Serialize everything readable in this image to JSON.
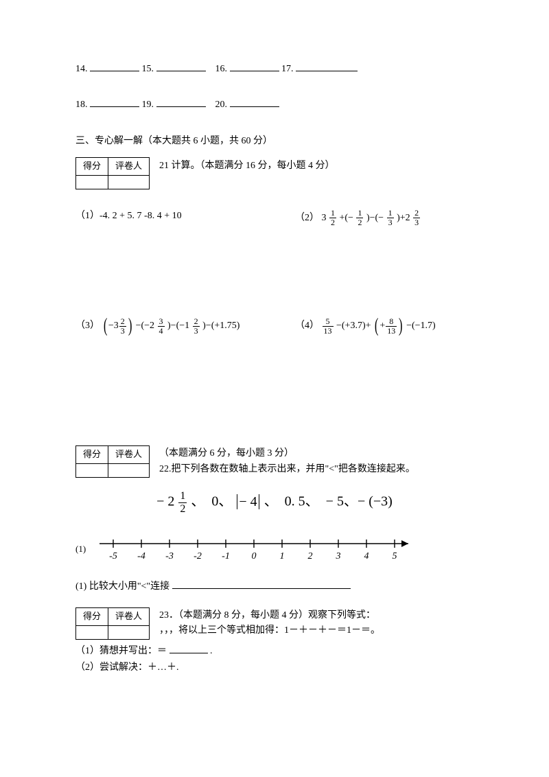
{
  "fills": {
    "r1": [
      "14.",
      "15.",
      "16.",
      "17."
    ],
    "r2": [
      "18.",
      "19.",
      "20."
    ]
  },
  "section3": {
    "title": "三、专心解一解（本大题共 6 小题，共 60 分）",
    "scorebox": {
      "col1": "得分",
      "col2": "评卷人"
    },
    "q21": {
      "header": "21 计算。（本题满分 16 分，每小题 4 分）",
      "p1_label": "（1）-4. 2 + 5. 7 -8. 4 + 10",
      "p2_label": "（2） 3",
      "p2_tail": "+(−",
      "p2_tail2": ")−(−",
      "p2_tail3": ")+2",
      "p3_label": "（3）",
      "p3_mid1": "−(−2",
      "p3_mid2": ")−(−1",
      "p3_mid3": ")−(+1.75)",
      "p4_label": "（4）",
      "p4_mid1": "−(+3.7)+",
      "p4_mid2": "−(−1.7)"
    },
    "q22": {
      "header_points": "（本题满分 6 分，每小题 3 分）",
      "header_text": "22.把下列各数在数轴上表示出来，并用\"<\"把各数连接起来。",
      "nums_a": "− 2",
      "nums_rest": "、　0、",
      "nums_abs": "− 4",
      "nums_tail": "、　0. 5、　− 5、− (−3)",
      "p1_label": "(1)",
      "compare": "(1) 比较大小用\"<\"连接",
      "ticks": [
        "-5",
        "-4",
        "-3",
        "-2",
        "-1",
        "0",
        "1",
        "2",
        "3",
        "4",
        "5"
      ]
    },
    "q23": {
      "header": "23．（本题满分 8 分，每小题 4 分）观察下列等式：",
      "line2": " ，，，将以上三个等式相加得：1－＋－＋－＝1－＝。",
      "sub1": "（1）猜想并写出：＝",
      "sub1_end": ".",
      "sub2": "（2）尝试解决：＋…＋."
    }
  },
  "style": {
    "blank_wide": 72,
    "blank_narrow": 56,
    "blank_long": 260
  }
}
